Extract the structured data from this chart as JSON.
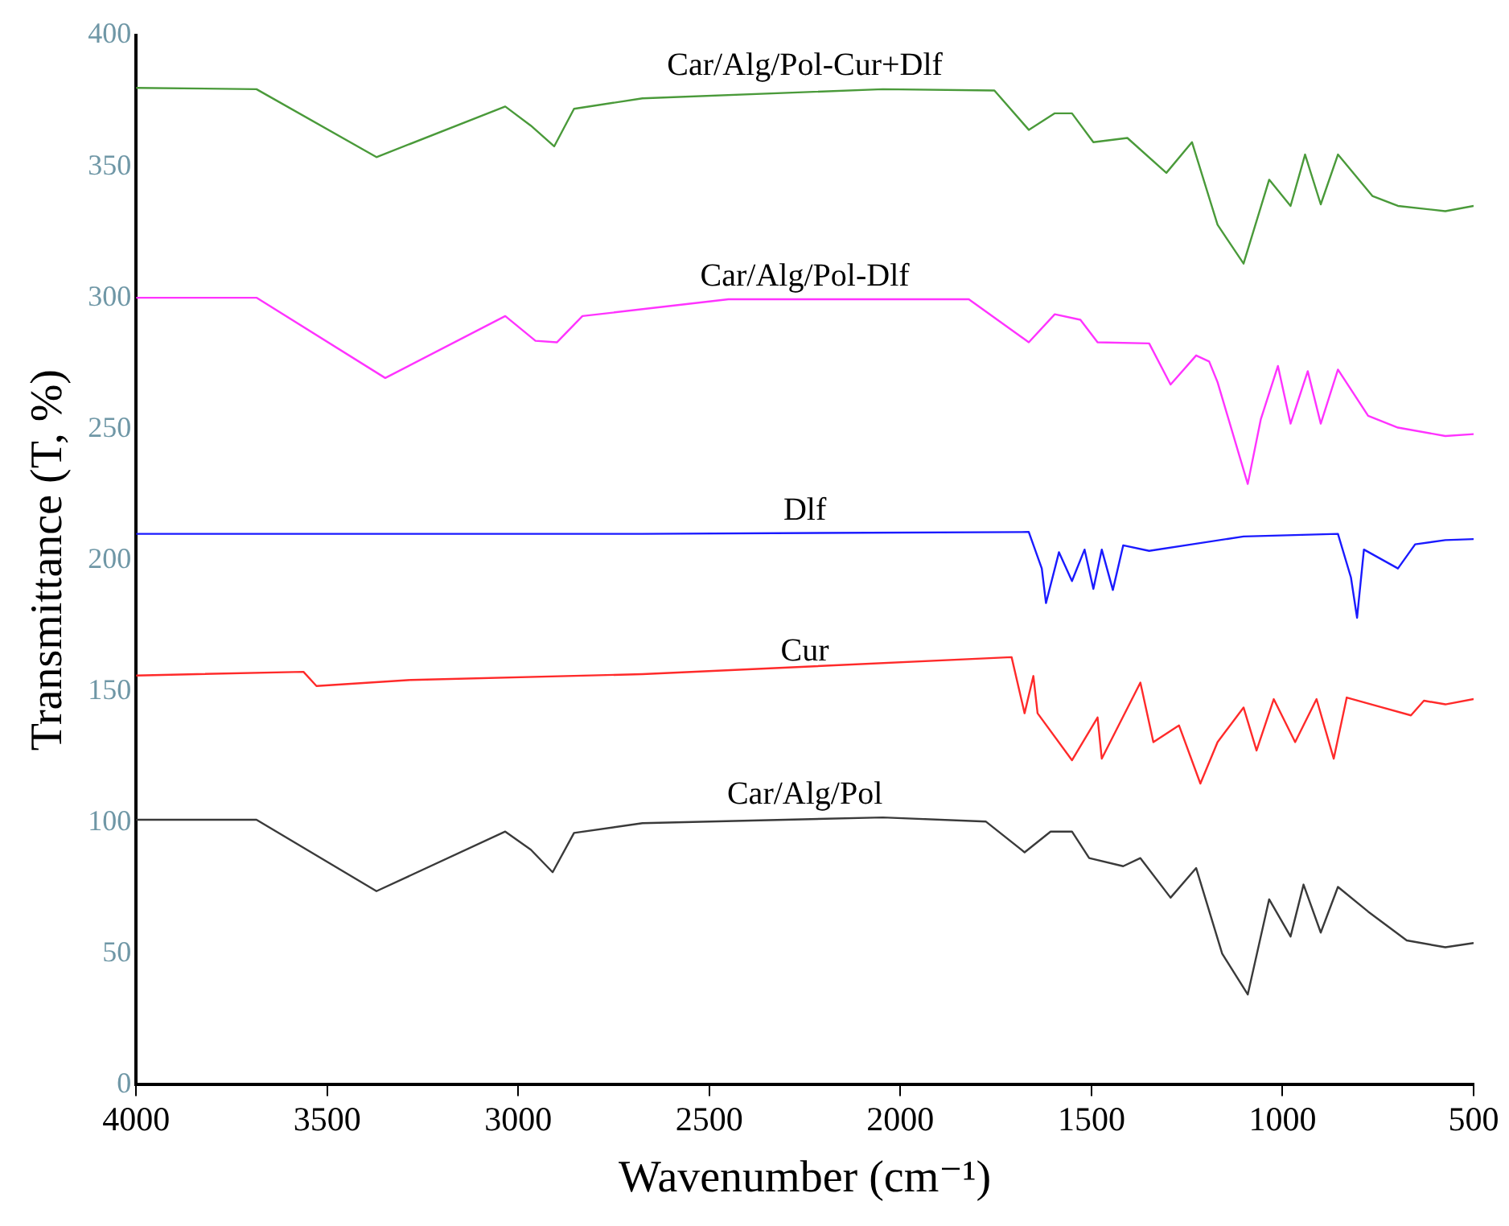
{
  "chart_data": {
    "type": "line",
    "xlabel": "Wavenumber (cm⁻¹)",
    "ylabel": "Transmittance (T, %)",
    "xlim": [
      4000,
      500
    ],
    "xticks": [
      4000,
      3500,
      3000,
      2500,
      2000,
      1500,
      1000,
      500
    ],
    "ylim": [
      0,
      400
    ],
    "yticks": [
      0,
      50,
      100,
      150,
      200,
      250,
      300,
      350,
      400
    ],
    "grid": false,
    "legend": false,
    "series": [
      {
        "name": "Car/Alg/Pol-Cur+Dlf",
        "color": "#4a9a3a",
        "x": [
          4000,
          3685,
          3371,
          3034,
          2967,
          2906,
          2854,
          2675,
          2046,
          1754,
          1664,
          1596,
          1551,
          1495,
          1406,
          1304,
          1237,
          1170,
          1102,
          1035,
          979,
          941,
          900,
          855,
          765,
          698,
          574,
          500
        ],
        "values": [
          380,
          379.5,
          353.6,
          372.9,
          365.6,
          357.7,
          372,
          376,
          379.5,
          379,
          364,
          370.3,
          370.3,
          359.3,
          360.9,
          347.6,
          359.3,
          327.8,
          313,
          345,
          335,
          354.6,
          335.6,
          354.6,
          338.8,
          335,
          333,
          335
        ]
      },
      {
        "name": "Car/Alg/Pol-Dlf",
        "color": "#ff33ff",
        "x": [
          4000,
          3685,
          3348,
          3034,
          2955,
          2899,
          2832,
          2450,
          1821,
          1664,
          1596,
          1529,
          1484,
          1349,
          1293,
          1226,
          1192,
          1170,
          1091,
          1057,
          1012,
          979,
          934,
          900,
          855,
          776,
          698,
          574,
          500
        ],
        "values": [
          300,
          300,
          269.4,
          293,
          283.6,
          283,
          293,
          299.4,
          299.4,
          283,
          293.7,
          291.6,
          283,
          282.6,
          266.9,
          278,
          275.7,
          267.8,
          229,
          253.6,
          274,
          252,
          272,
          252,
          272.6,
          255,
          250.5,
          247.3,
          248
        ]
      },
      {
        "name": "Dlf",
        "color": "#1a1aff",
        "x": [
          4000,
          2675,
          1664,
          1630,
          1619,
          1585,
          1551,
          1518,
          1495,
          1473,
          1444,
          1417,
          1349,
          1237,
          1102,
          855,
          821,
          805,
          787,
          698,
          653,
          574,
          500
        ],
        "values": [
          210,
          210,
          210.7,
          196.8,
          183.6,
          203,
          192,
          204,
          189,
          204,
          188.6,
          205.6,
          203.5,
          206,
          209,
          210,
          193.4,
          178,
          204,
          196.8,
          206,
          207.6,
          208
        ]
      },
      {
        "name": "Cur",
        "color": "#ff2a2a",
        "x": [
          4000,
          3562,
          3528,
          3281,
          2675,
          1709,
          1675,
          1652,
          1641,
          1551,
          1484,
          1473,
          1372,
          1338,
          1271,
          1215,
          1170,
          1102,
          1068,
          1023,
          967,
          911,
          866,
          832,
          743,
          664,
          630,
          574,
          500
        ],
        "values": [
          156,
          157.4,
          152,
          154.3,
          156.5,
          163,
          141.6,
          155.8,
          141.6,
          123.7,
          140,
          124.3,
          153.3,
          130.6,
          137,
          114.8,
          130.6,
          143.8,
          127.4,
          147,
          130.6,
          147,
          124.3,
          147.6,
          144,
          140.8,
          146.4,
          145,
          147
        ]
      },
      {
        "name": "Car/Alg/Pol",
        "color": "#3a3a3a",
        "x": [
          4000,
          3685,
          3371,
          3034,
          2967,
          2910,
          2854,
          2675,
          2046,
          1776,
          1675,
          1607,
          1551,
          1506,
          1417,
          1372,
          1293,
          1226,
          1158,
          1091,
          1035,
          979,
          945,
          900,
          855,
          776,
          675,
          574,
          500
        ],
        "values": [
          101,
          101,
          73.8,
          96.5,
          89.6,
          81,
          96,
          99.7,
          101.9,
          100.3,
          88.6,
          96.5,
          96.5,
          86.4,
          83.3,
          86.4,
          71.3,
          82.6,
          50,
          34.4,
          70.7,
          56.5,
          76.3,
          58,
          75.4,
          66,
          55,
          52.4,
          54
        ]
      }
    ]
  }
}
